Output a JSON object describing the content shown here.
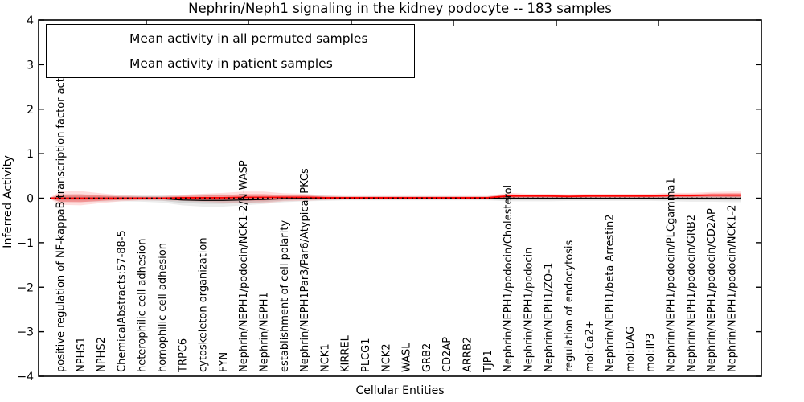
{
  "chart_data": {
    "type": "line",
    "title": "Nephrin/Neph1 signaling in the kidney podocyte -- 183 samples",
    "xlabel": "Cellular Entities",
    "ylabel": "Inferred Activity",
    "ylim": [
      -4,
      4
    ],
    "yticks": [
      4,
      3,
      2,
      1,
      0,
      -1,
      -2,
      -3,
      -4
    ],
    "grid": false,
    "zero_line": "black dotted horizontal line at y=0",
    "legend_position": "upper left",
    "legend": {
      "entries": [
        {
          "label": "Mean activity in all permuted samples",
          "color": "#000000"
        },
        {
          "label": "Mean activity in patient samples",
          "color": "#ff0000"
        }
      ]
    },
    "categories": [
      "positive regulation of NF-kappaB transcription factor activity",
      "NPHS1",
      "NPHS2",
      "ChemicalAbstracts:57-88-5",
      "heterophilic cell adhesion",
      "homophilic cell adhesion",
      "TRPC6",
      "cytoskeleton organization",
      "FYN",
      "Nephrin/NEPH1/podocin/NCK1-2/N-WASP",
      "Nephrin/NEPH1",
      "establishment of cell polarity",
      "Nephrin/NEPH1Par3/Par6/Atypical PKCs",
      "NCK1",
      "KIRREL",
      "PLCG1",
      "NCK2",
      "WASL",
      "GRB2",
      "CD2AP",
      "ARRB2",
      "TJP1",
      "Nephrin/NEPH1/podocin/Cholesterol",
      "Nephrin/NEPH1/podocin",
      "Nephrin/NEPH1/ZO-1",
      "regulation of endocytosis",
      "mol:Ca2+",
      "Nephrin/NEPH1/beta Arrestin2",
      "mol:DAG",
      "mol:IP3",
      "Nephrin/NEPH1/podocin/PLCgamma1",
      "Nephrin/NEPH1/podocin/GRB2",
      "Nephrin/NEPH1/podocin/CD2AP",
      "Nephrin/NEPH1/podocin/NCK1-2"
    ],
    "series": [
      {
        "name": "Mean activity in all permuted samples",
        "color": "#000000",
        "band_color": "#808080",
        "mean": [
          0,
          0,
          0,
          0,
          0,
          -0.01,
          -0.04,
          -0.05,
          -0.05,
          -0.04,
          -0.03,
          -0.01,
          0,
          0,
          0,
          0,
          0,
          0,
          0,
          0,
          0,
          0,
          0,
          0,
          0,
          0,
          0,
          0,
          0,
          0,
          0,
          0,
          0,
          0
        ],
        "sd": [
          0.09,
          0.09,
          0.08,
          0.07,
          0.08,
          0.09,
          0.12,
          0.14,
          0.14,
          0.12,
          0.1,
          0.08,
          0.07,
          0.06,
          0.05,
          0.05,
          0.05,
          0.05,
          0.05,
          0.05,
          0.05,
          0.05,
          0.07,
          0.07,
          0.07,
          0.06,
          0.06,
          0.06,
          0.06,
          0.06,
          0.07,
          0.08,
          0.08,
          0.09
        ]
      },
      {
        "name": "Mean activity in patient samples",
        "color": "#ff0000",
        "band_color": "#ff0000",
        "mean": [
          0,
          0,
          0,
          0,
          0,
          0,
          0.01,
          0.01,
          0.01,
          0.02,
          0.02,
          0.02,
          0.02,
          0.01,
          0.01,
          0.01,
          0.01,
          0.01,
          0.01,
          0.01,
          0.01,
          0.01,
          0.05,
          0.05,
          0.05,
          0.04,
          0.05,
          0.05,
          0.05,
          0.05,
          0.06,
          0.06,
          0.07,
          0.07
        ],
        "sd": [
          0.15,
          0.16,
          0.11,
          0.07,
          0.05,
          0.05,
          0.07,
          0.09,
          0.11,
          0.13,
          0.13,
          0.09,
          0.08,
          0.05,
          0.04,
          0.04,
          0.04,
          0.04,
          0.04,
          0.04,
          0.04,
          0.04,
          0.07,
          0.05,
          0.05,
          0.05,
          0.05,
          0.05,
          0.05,
          0.05,
          0.06,
          0.06,
          0.07,
          0.08
        ]
      }
    ]
  }
}
